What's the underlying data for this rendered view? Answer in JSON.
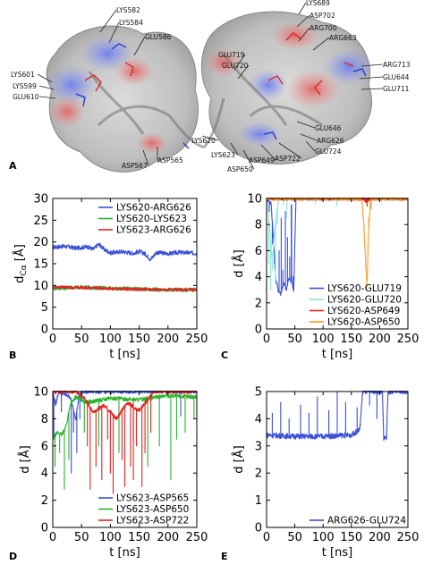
{
  "panel_labels": [
    "A",
    "B",
    "C",
    "D",
    "E"
  ],
  "structure": {
    "residue_labels": [
      "LYS582",
      "LYS584",
      "GLU586",
      "LYS601",
      "LYS599",
      "GLU610",
      "ASP567",
      "ASP565",
      "LYS620",
      "LYS623",
      "ASP650",
      "ASP649",
      "ASP722",
      "GLU724",
      "ARG626",
      "GLU646",
      "GLU711",
      "GLU644",
      "ARG713",
      "ARG663",
      "ARG700",
      "ASP702",
      "LYS689",
      "GLU719",
      "GLU720"
    ]
  },
  "colors": {
    "blue": "#3a4fd8",
    "green": "#2bb32b",
    "red": "#e02424",
    "cyan": "#8fe6d4",
    "orange": "#ff9a1f"
  },
  "chart_data": [
    {
      "panel": "B",
      "type": "line",
      "xlabel": "t [ns]",
      "ylabel": "d_Cα [Å]",
      "xlim": [
        0,
        250
      ],
      "ylim": [
        0,
        30
      ],
      "xticks": [
        0,
        50,
        100,
        150,
        200,
        250
      ],
      "yticks": [
        0,
        5,
        10,
        15,
        20,
        25,
        30
      ],
      "legend_position": "top-right",
      "series": [
        {
          "name": "LYS620-ARG626",
          "color": "#3a4fd8",
          "noise": 0.5,
          "points": [
            [
              0,
              18.8
            ],
            [
              20,
              19.0
            ],
            [
              40,
              18.6
            ],
            [
              60,
              18.9
            ],
            [
              70,
              18.3
            ],
            [
              80,
              19.5
            ],
            [
              90,
              18.2
            ],
            [
              100,
              17.5
            ],
            [
              120,
              17.8
            ],
            [
              140,
              17.4
            ],
            [
              150,
              17.8
            ],
            [
              160,
              17.3
            ],
            [
              170,
              16.0
            ],
            [
              180,
              17.6
            ],
            [
              200,
              17.3
            ],
            [
              220,
              17.6
            ],
            [
              250,
              17.4
            ]
          ]
        },
        {
          "name": "LYS620-LYS623",
          "color": "#2bb32b",
          "noise": 0.45,
          "points": [
            [
              0,
              9.3
            ],
            [
              50,
              9.6
            ],
            [
              100,
              9.3
            ],
            [
              150,
              9.2
            ],
            [
              200,
              9.0
            ],
            [
              250,
              9.0
            ]
          ]
        },
        {
          "name": "LYS623-ARG626",
          "color": "#e02424",
          "noise": 0.35,
          "points": [
            [
              0,
              9.6
            ],
            [
              50,
              9.5
            ],
            [
              100,
              9.3
            ],
            [
              150,
              9.1
            ],
            [
              200,
              9.0
            ],
            [
              250,
              9.0
            ]
          ]
        }
      ]
    },
    {
      "panel": "C",
      "type": "line",
      "xlabel": "t [ns]",
      "ylabel": "d [Å]",
      "xlim": [
        0,
        250
      ],
      "ylim": [
        0,
        10
      ],
      "xticks": [
        0,
        50,
        100,
        150,
        200,
        250
      ],
      "yticks": [
        0,
        2,
        4,
        6,
        8,
        10
      ],
      "legend_position": "bottom-right",
      "series": [
        {
          "name": "LYS620-GLU719",
          "color": "#3a4fd8",
          "points": [
            [
              0,
              10.0
            ],
            [
              8,
              9.6
            ],
            [
              12,
              7.0
            ],
            [
              16,
              4.0
            ],
            [
              20,
              3.0
            ],
            [
              25,
              2.7
            ],
            [
              30,
              3.5
            ],
            [
              35,
              3.0
            ],
            [
              40,
              4.0
            ],
            [
              45,
              3.5
            ],
            [
              48,
              2.8
            ],
            [
              52,
              10.0
            ],
            [
              250,
              10.0
            ]
          ],
          "spikes": [
            [
              5,
              9.0
            ],
            [
              10,
              6.5
            ],
            [
              14,
              5.0
            ],
            [
              18,
              3.5
            ],
            [
              22,
              6.0
            ],
            [
              26,
              8.5
            ],
            [
              29,
              4.5
            ],
            [
              33,
              9.0
            ],
            [
              37,
              7.0
            ],
            [
              41,
              5.5
            ],
            [
              44,
              9.5
            ],
            [
              47,
              4.0
            ],
            [
              50,
              6.5
            ]
          ]
        },
        {
          "name": "LYS620-GLU720",
          "color": "#8fe6d4",
          "points": [
            [
              0,
              10.0
            ],
            [
              3,
              9.0
            ],
            [
              6,
              7.5
            ],
            [
              9,
              5.5
            ],
            [
              12,
              6.0
            ],
            [
              15,
              8.0
            ],
            [
              18,
              9.0
            ],
            [
              22,
              10.0
            ],
            [
              250,
              10.0
            ]
          ],
          "spikes": [
            [
              4,
              5.0
            ],
            [
              7,
              3.0
            ],
            [
              10,
              4.5
            ],
            [
              13,
              7.0
            ],
            [
              16,
              3.5
            ],
            [
              19,
              8.0
            ],
            [
              30,
              9.5
            ],
            [
              36,
              8.5
            ],
            [
              86,
              9.6
            ],
            [
              124,
              9.4
            ]
          ]
        },
        {
          "name": "LYS620-ASP649",
          "color": "#e02424",
          "points": [
            [
              0,
              10.0
            ],
            [
              172,
              10.0
            ],
            [
              176,
              9.8
            ],
            [
              182,
              10.0
            ],
            [
              250,
              10.0
            ]
          ],
          "spikes": [
            [
              178,
              9.4
            ]
          ]
        },
        {
          "name": "LYS620-ASP650",
          "color": "#ff9a1f",
          "points": [
            [
              0,
              10.0
            ],
            [
              168,
              10.0
            ],
            [
              172,
              8.0
            ],
            [
              176,
              4.5
            ],
            [
              178,
              3.6
            ],
            [
              180,
              7.0
            ],
            [
              184,
              10.0
            ],
            [
              250,
              10.0
            ]
          ],
          "spikes": [
            [
              170,
              9.0
            ],
            [
              174,
              6.0
            ],
            [
              177,
              3.0
            ],
            [
              179,
              5.0
            ],
            [
              181,
              8.5
            ],
            [
              185,
              9.2
            ]
          ]
        }
      ]
    },
    {
      "panel": "D",
      "type": "line",
      "xlabel": "t [ns]",
      "ylabel": "d [Å]",
      "xlim": [
        0,
        250
      ],
      "ylim": [
        0,
        10
      ],
      "xticks": [
        0,
        50,
        100,
        150,
        200,
        250
      ],
      "yticks": [
        0,
        2,
        4,
        6,
        8,
        10
      ],
      "legend_position": "bottom-right",
      "series": [
        {
          "name": "LYS623-ASP565",
          "color": "#3a4fd8",
          "points": [
            [
              0,
              10.0
            ],
            [
              5,
              9.0
            ],
            [
              10,
              10.0
            ],
            [
              30,
              9.6
            ],
            [
              40,
              8.0
            ],
            [
              45,
              9.5
            ],
            [
              50,
              10.0
            ],
            [
              250,
              10.0
            ]
          ],
          "spikes": [
            [
              2,
              6.5
            ],
            [
              15,
              8.5
            ],
            [
              32,
              4.0
            ],
            [
              36,
              7.0
            ],
            [
              42,
              5.5
            ],
            [
              47,
              8.0
            ],
            [
              222,
              8.2
            ]
          ]
        },
        {
          "name": "LYS623-ASP650",
          "color": "#2bb32b",
          "points": [
            [
              0,
              6.5
            ],
            [
              8,
              7.0
            ],
            [
              16,
              6.8
            ],
            [
              24,
              7.6
            ],
            [
              30,
              9.0
            ],
            [
              40,
              9.6
            ],
            [
              60,
              9.2
            ],
            [
              100,
              9.5
            ],
            [
              150,
              9.4
            ],
            [
              200,
              9.7
            ],
            [
              250,
              9.6
            ]
          ],
          "spikes": [
            [
              4,
              4.5
            ],
            [
              12,
              5.5
            ],
            [
              20,
              2.8
            ],
            [
              28,
              5.0
            ],
            [
              55,
              7.0
            ],
            [
              80,
              6.0
            ],
            [
              115,
              5.5
            ],
            [
              140,
              6.5
            ],
            [
              165,
              4.5
            ],
            [
              185,
              6.0
            ],
            [
              205,
              3.5
            ],
            [
              215,
              6.5
            ],
            [
              230,
              7.0
            ],
            [
              245,
              8.0
            ]
          ]
        },
        {
          "name": "LYS623-ASP722",
          "color": "#e02424",
          "points": [
            [
              0,
              10.0
            ],
            [
              40,
              10.0
            ],
            [
              55,
              9.5
            ],
            [
              70,
              8.5
            ],
            [
              90,
              9.0
            ],
            [
              110,
              8.0
            ],
            [
              130,
              9.2
            ],
            [
              150,
              8.6
            ],
            [
              165,
              9.4
            ],
            [
              175,
              10.0
            ],
            [
              250,
              10.0
            ]
          ],
          "spikes": [
            [
              60,
              6.0
            ],
            [
              65,
              2.8
            ],
            [
              75,
              4.5
            ],
            [
              85,
              3.5
            ],
            [
              95,
              6.5
            ],
            [
              100,
              4.0
            ],
            [
              105,
              2.5
            ],
            [
              120,
              5.0
            ],
            [
              125,
              3.0
            ],
            [
              135,
              4.5
            ],
            [
              140,
              3.5
            ],
            [
              145,
              6.0
            ],
            [
              155,
              3.0
            ],
            [
              160,
              5.5
            ],
            [
              170,
              7.0
            ]
          ]
        }
      ]
    },
    {
      "panel": "E",
      "type": "line",
      "xlabel": "t [ns]",
      "ylabel": "d [Å]",
      "xlim": [
        0,
        250
      ],
      "ylim": [
        0,
        5
      ],
      "xticks": [
        0,
        50,
        100,
        150,
        200,
        250
      ],
      "yticks": [
        0,
        1,
        2,
        3,
        4,
        5
      ],
      "legend_position": "bottom-right",
      "series": [
        {
          "name": "ARG626-GLU724",
          "color": "#3a4fd8",
          "noise": 0.1,
          "points": [
            [
              0,
              3.4
            ],
            [
              50,
              3.35
            ],
            [
              100,
              3.35
            ],
            [
              150,
              3.4
            ],
            [
              165,
              3.6
            ],
            [
              170,
              5.0
            ],
            [
              205,
              5.0
            ],
            [
              207,
              3.3
            ],
            [
              212,
              3.3
            ],
            [
              215,
              5.0
            ],
            [
              250,
              5.0
            ]
          ],
          "spikes": [
            [
              10,
              4.2
            ],
            [
              25,
              4.6
            ],
            [
              40,
              4.0
            ],
            [
              60,
              4.5
            ],
            [
              75,
              4.2
            ],
            [
              90,
              4.8
            ],
            [
              110,
              4.3
            ],
            [
              125,
              5.0
            ],
            [
              140,
              4.6
            ],
            [
              160,
              4.4
            ],
            [
              182,
              4.5
            ],
            [
              195,
              4.0
            ]
          ]
        }
      ]
    }
  ]
}
